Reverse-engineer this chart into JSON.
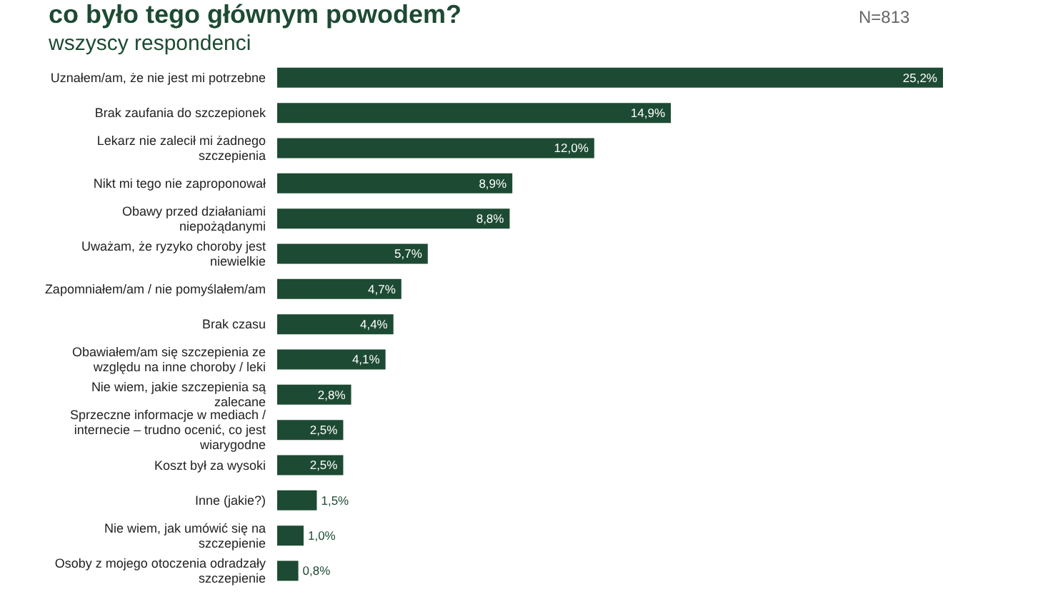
{
  "chart_data": {
    "type": "bar",
    "orientation": "horizontal",
    "title": "co było tego głównym powodem?",
    "subtitle": "wszyscy respondenci",
    "annotations": [
      "N=813"
    ],
    "categories": [
      "Uznałem/am, że nie jest mi potrzebne",
      "Brak zaufania do szczepionek",
      "Lekarz nie zalecił mi żadnego szczepienia",
      "Nikt mi tego nie zaproponował",
      "Obawy przed działaniami niepożądanymi",
      "Uważam, że ryzyko choroby jest niewielkie",
      "Zapomniałem/am / nie pomyślałem/am",
      "Brak czasu",
      "Obawiałem/am się szczepienia ze względu na inne choroby / leki",
      "Nie wiem, jakie szczepienia są zalecane",
      "Sprzeczne informacje w mediach / internecie – trudno ocenić, co jest wiarygodne",
      "Koszt był za wysoki",
      "Inne (jakie?)",
      "Nie wiem, jak umówić się na szczepienie",
      "Osoby z mojego otoczenia odradzały szczepienie"
    ],
    "values": [
      25.2,
      14.9,
      12.0,
      8.9,
      8.8,
      5.7,
      4.7,
      4.4,
      4.1,
      2.8,
      2.5,
      2.5,
      1.5,
      1.0,
      0.8
    ],
    "value_labels": [
      "25,2%",
      "14,9%",
      "12,0%",
      "8,9%",
      "8,8%",
      "5,7%",
      "4,7%",
      "4,4%",
      "4,1%",
      "2,8%",
      "2,5%",
      "2,5%",
      "1,5%",
      "1,0%",
      "0,8%"
    ],
    "color": "#1d4a33"
  }
}
